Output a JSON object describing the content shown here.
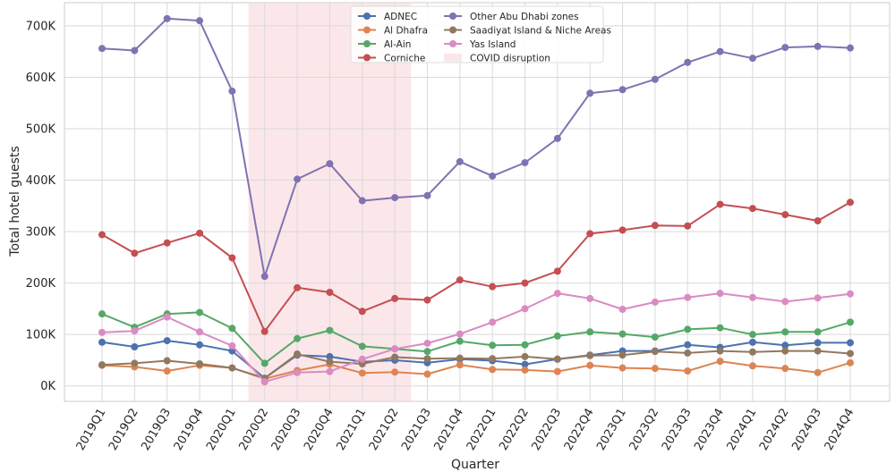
{
  "chart_data": {
    "type": "line",
    "xlabel": "Quarter",
    "ylabel": "Total hotel guests",
    "ylim": [
      -30000,
      745000
    ],
    "yticks": [
      0,
      100000,
      200000,
      300000,
      400000,
      500000,
      600000,
      700000
    ],
    "ytick_labels": [
      "0K",
      "100K",
      "200K",
      "300K",
      "400K",
      "500K",
      "600K",
      "700K"
    ],
    "grid": true,
    "legend_position": "top-center",
    "categories": [
      "2019Q1",
      "2019Q2",
      "2019Q3",
      "2019Q4",
      "2020Q1",
      "2020Q2",
      "2020Q3",
      "2020Q4",
      "2021Q1",
      "2021Q2",
      "2021Q3",
      "2021Q4",
      "2022Q1",
      "2022Q2",
      "2022Q3",
      "2022Q4",
      "2023Q1",
      "2023Q2",
      "2023Q3",
      "2023Q4",
      "2024Q1",
      "2024Q2",
      "2024Q3",
      "2024Q4"
    ],
    "shaded_region": {
      "label": "COVID disruption",
      "start": "2020Q2",
      "end": "2021Q2",
      "color": "#f8d7da"
    },
    "series": [
      {
        "name": "ADNEC",
        "color": "#4c72b0",
        "values": [
          85000,
          76000,
          88000,
          80000,
          68000,
          15000,
          60000,
          57000,
          47000,
          50000,
          45000,
          52000,
          49000,
          42000,
          52000,
          60000,
          68000,
          68000,
          80000,
          75000,
          85000,
          79000,
          84000,
          84000
        ]
      },
      {
        "name": "Al Dhafra",
        "color": "#dd8452",
        "values": [
          40000,
          37000,
          29000,
          40000,
          35000,
          14000,
          30000,
          42000,
          25000,
          27000,
          23000,
          41000,
          32000,
          31000,
          28000,
          40000,
          35000,
          34000,
          29000,
          48000,
          39000,
          34000,
          26000,
          45000
        ]
      },
      {
        "name": "Al-Ain",
        "color": "#55a868",
        "values": [
          140000,
          114000,
          140000,
          143000,
          112000,
          44000,
          92000,
          108000,
          77000,
          72000,
          67000,
          87000,
          79000,
          80000,
          97000,
          105000,
          101000,
          95000,
          110000,
          113000,
          100000,
          105000,
          105000,
          124000
        ]
      },
      {
        "name": "Corniche",
        "color": "#c44e52",
        "values": [
          294000,
          258000,
          278000,
          297000,
          249000,
          106000,
          191000,
          182000,
          145000,
          170000,
          167000,
          206000,
          193000,
          200000,
          223000,
          296000,
          303000,
          312000,
          311000,
          353000,
          345000,
          333000,
          321000,
          357000
        ]
      },
      {
        "name": "Other Abu Dhabi zones",
        "color": "#8172b3",
        "values": [
          656000,
          652000,
          714000,
          710000,
          573000,
          213000,
          402000,
          432000,
          360000,
          366000,
          370000,
          436000,
          408000,
          434000,
          481000,
          569000,
          576000,
          596000,
          629000,
          650000,
          637000,
          658000,
          660000,
          657000
        ]
      },
      {
        "name": "Saadiyat Island & Niche Areas",
        "color": "#937860",
        "values": [
          41000,
          44000,
          49000,
          43000,
          35000,
          15000,
          62000,
          47000,
          43000,
          56000,
          53000,
          54000,
          53000,
          57000,
          52000,
          59000,
          60000,
          67000,
          64000,
          68000,
          66000,
          68000,
          68000,
          63000
        ]
      },
      {
        "name": "Yas Island",
        "color": "#da8bc3",
        "values": [
          104000,
          107000,
          134000,
          105000,
          78000,
          8000,
          26000,
          28000,
          52000,
          72000,
          83000,
          101000,
          124000,
          150000,
          180000,
          170000,
          149000,
          163000,
          172000,
          180000,
          172000,
          164000,
          171000,
          179000
        ]
      }
    ]
  }
}
